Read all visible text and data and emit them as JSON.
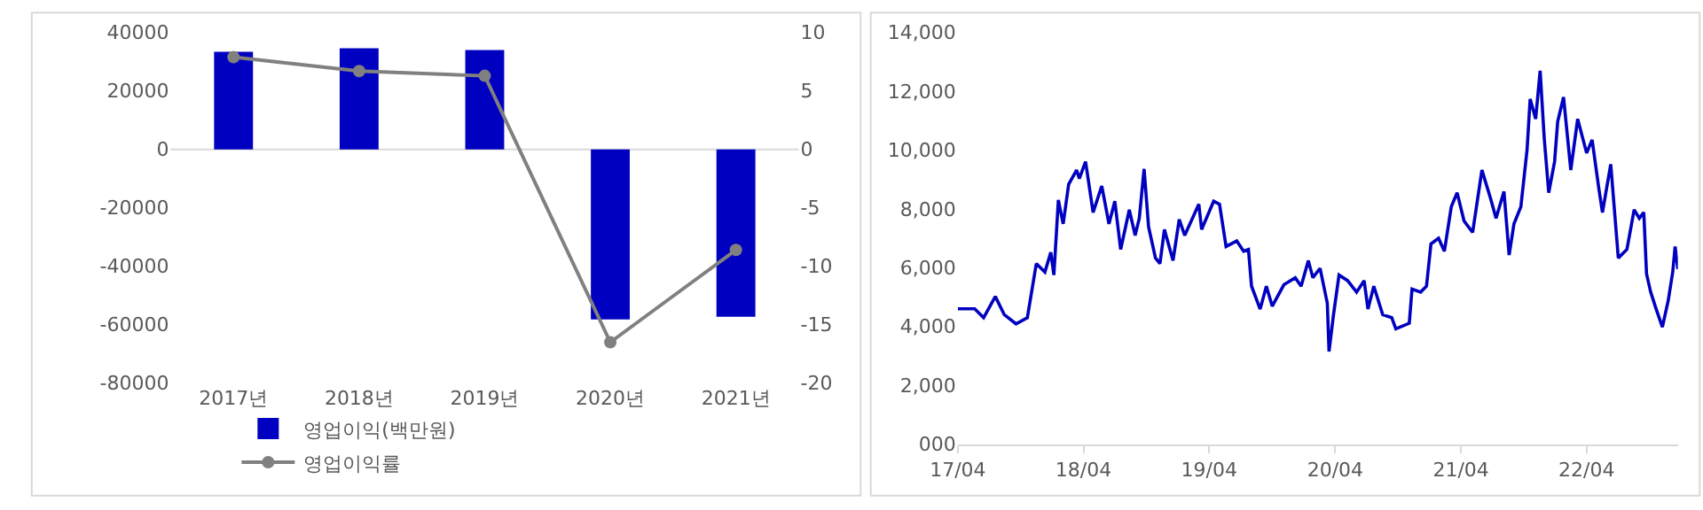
{
  "chart_data": [
    {
      "type": "bar",
      "categories": [
        "2017년",
        "2018년",
        "2019년",
        "2020년",
        "2021년"
      ],
      "series": [
        {
          "name": "영업이익(백만원)",
          "color": "#0000c0",
          "values": [
            33400,
            34600,
            34000,
            -58200,
            -57300
          ]
        },
        {
          "name": "영업이익률",
          "type": "line",
          "axis": "y2",
          "color": "#808080",
          "marker": "circle",
          "values": [
            7.9,
            6.7,
            6.3,
            -16.5,
            -8.6
          ]
        }
      ],
      "ylim": [
        -80000,
        40000
      ],
      "yticks": [
        -80000,
        -60000,
        -40000,
        -20000,
        0,
        20000,
        40000
      ],
      "y2lim": [
        -20,
        10
      ],
      "y2ticks": [
        -20,
        -15,
        -10,
        -5,
        0,
        5,
        10
      ],
      "ref_lines": [
        {
          "axis": "y",
          "value": 0,
          "color": "#d9d9d9"
        }
      ],
      "grid": false,
      "legend": "bottom"
    },
    {
      "type": "line",
      "x": [
        "2017-04-01",
        "2017-05-20",
        "2017-06-15",
        "2017-07-19",
        "2017-08-14",
        "2017-09-17",
        "2017-10-20",
        "2017-11-15",
        "2017-12-10",
        "2017-12-27",
        "2018-01-05",
        "2018-01-18",
        "2018-02-01",
        "2018-02-17",
        "2018-03-12",
        "2018-03-20",
        "2018-04-07",
        "2018-04-29",
        "2018-05-24",
        "2018-06-14",
        "2018-07-01",
        "2018-07-18",
        "2018-08-12",
        "2018-08-29",
        "2018-09-10",
        "2018-09-24",
        "2018-10-07",
        "2018-10-27",
        "2018-11-09",
        "2018-11-22",
        "2018-12-17",
        "2019-01-04",
        "2019-01-20",
        "2019-03-02",
        "2019-03-10",
        "2019-04-14",
        "2019-05-01",
        "2019-05-20",
        "2019-06-20",
        "2019-07-10",
        "2019-07-24",
        "2019-08-02",
        "2019-08-27",
        "2019-09-14",
        "2019-10-01",
        "2019-11-04",
        "2019-12-07",
        "2019-12-24",
        "2020-01-14",
        "2020-01-27",
        "2020-02-17",
        "2020-03-09",
        "2020-03-14",
        "2020-03-27",
        "2020-04-12",
        "2020-05-07",
        "2020-06-02",
        "2020-06-24",
        "2020-07-05",
        "2020-07-22",
        "2020-08-17",
        "2020-09-12",
        "2020-09-24",
        "2020-11-02",
        "2020-11-10",
        "2020-12-05",
        "2020-12-22",
        "2021-01-04",
        "2021-01-26",
        "2021-02-12",
        "2021-03-04",
        "2021-03-21",
        "2021-04-10",
        "2021-05-05",
        "2021-06-01",
        "2021-06-26",
        "2021-07-12",
        "2021-08-04",
        "2021-08-19",
        "2021-09-02",
        "2021-09-22",
        "2021-10-10",
        "2021-10-19",
        "2021-11-04",
        "2021-11-17",
        "2021-11-29",
        "2021-12-12",
        "2021-12-29",
        "2022-01-07",
        "2022-01-24",
        "2022-02-14",
        "2022-03-06",
        "2022-04-01",
        "2022-04-17",
        "2022-05-07",
        "2022-05-17",
        "2022-06-10",
        "2022-07-02",
        "2022-07-27",
        "2022-08-17",
        "2022-09-01",
        "2022-09-14",
        "2022-09-22",
        "2022-10-04",
        "2022-10-20",
        "2022-11-07",
        "2022-11-24",
        "2022-12-07",
        "2022-12-14",
        "2022-12-22"
      ],
      "series": [
        {
          "color": "#0000c0",
          "values": [
            4600,
            4600,
            4300,
            5020,
            4400,
            4090,
            4300,
            6140,
            5850,
            6520,
            5750,
            8300,
            7490,
            8840,
            9320,
            9030,
            9610,
            7880,
            8780,
            7490,
            8260,
            6620,
            7970,
            7100,
            7680,
            9360,
            7390,
            6330,
            6140,
            7300,
            6240,
            7640,
            7100,
            8160,
            7300,
            8260,
            8160,
            6720,
            6910,
            6560,
            6620,
            5370,
            4590,
            5370,
            4690,
            5420,
            5660,
            5370,
            6240,
            5660,
            5980,
            4790,
            3150,
            4400,
            5750,
            5560,
            5170,
            5560,
            4590,
            5370,
            4400,
            4300,
            3920,
            4110,
            5270,
            5170,
            5370,
            6810,
            7000,
            6560,
            8070,
            8550,
            7590,
            7200,
            9320,
            8360,
            7680,
            8590,
            6430,
            7490,
            8070,
            10000,
            11740,
            11060,
            12700,
            10390,
            8550,
            9610,
            10970,
            11800,
            9320,
            11060,
            9900,
            10350,
            8650,
            7880,
            9520,
            6330,
            6620,
            7970,
            7680,
            7880,
            5790,
            5170,
            4590,
            3980,
            4880,
            5850,
            6720,
            5950
          ]
        }
      ],
      "xlim": [
        "2017-04-01",
        "2022-12-22"
      ],
      "xticks": [
        {
          "value": "2017-04-01",
          "label": "17/04"
        },
        {
          "value": "2018-04-01",
          "label": "18/04"
        },
        {
          "value": "2019-04-01",
          "label": "19/04"
        },
        {
          "value": "2020-04-01",
          "label": "20/04"
        },
        {
          "value": "2021-04-01",
          "label": "21/04"
        },
        {
          "value": "2022-04-01",
          "label": "22/04"
        }
      ],
      "ylim": [
        0,
        14000
      ],
      "yticks": [
        {
          "value": 0,
          "label": "000"
        },
        {
          "value": 2000,
          "label": "2,000"
        },
        {
          "value": 4000,
          "label": "4,000"
        },
        {
          "value": 6000,
          "label": "6,000"
        },
        {
          "value": 8000,
          "label": "8,000"
        },
        {
          "value": 10000,
          "label": "10,000"
        },
        {
          "value": 12000,
          "label": "12,000"
        },
        {
          "value": 14000,
          "label": "14,000"
        }
      ],
      "grid": false,
      "legend": false
    }
  ]
}
